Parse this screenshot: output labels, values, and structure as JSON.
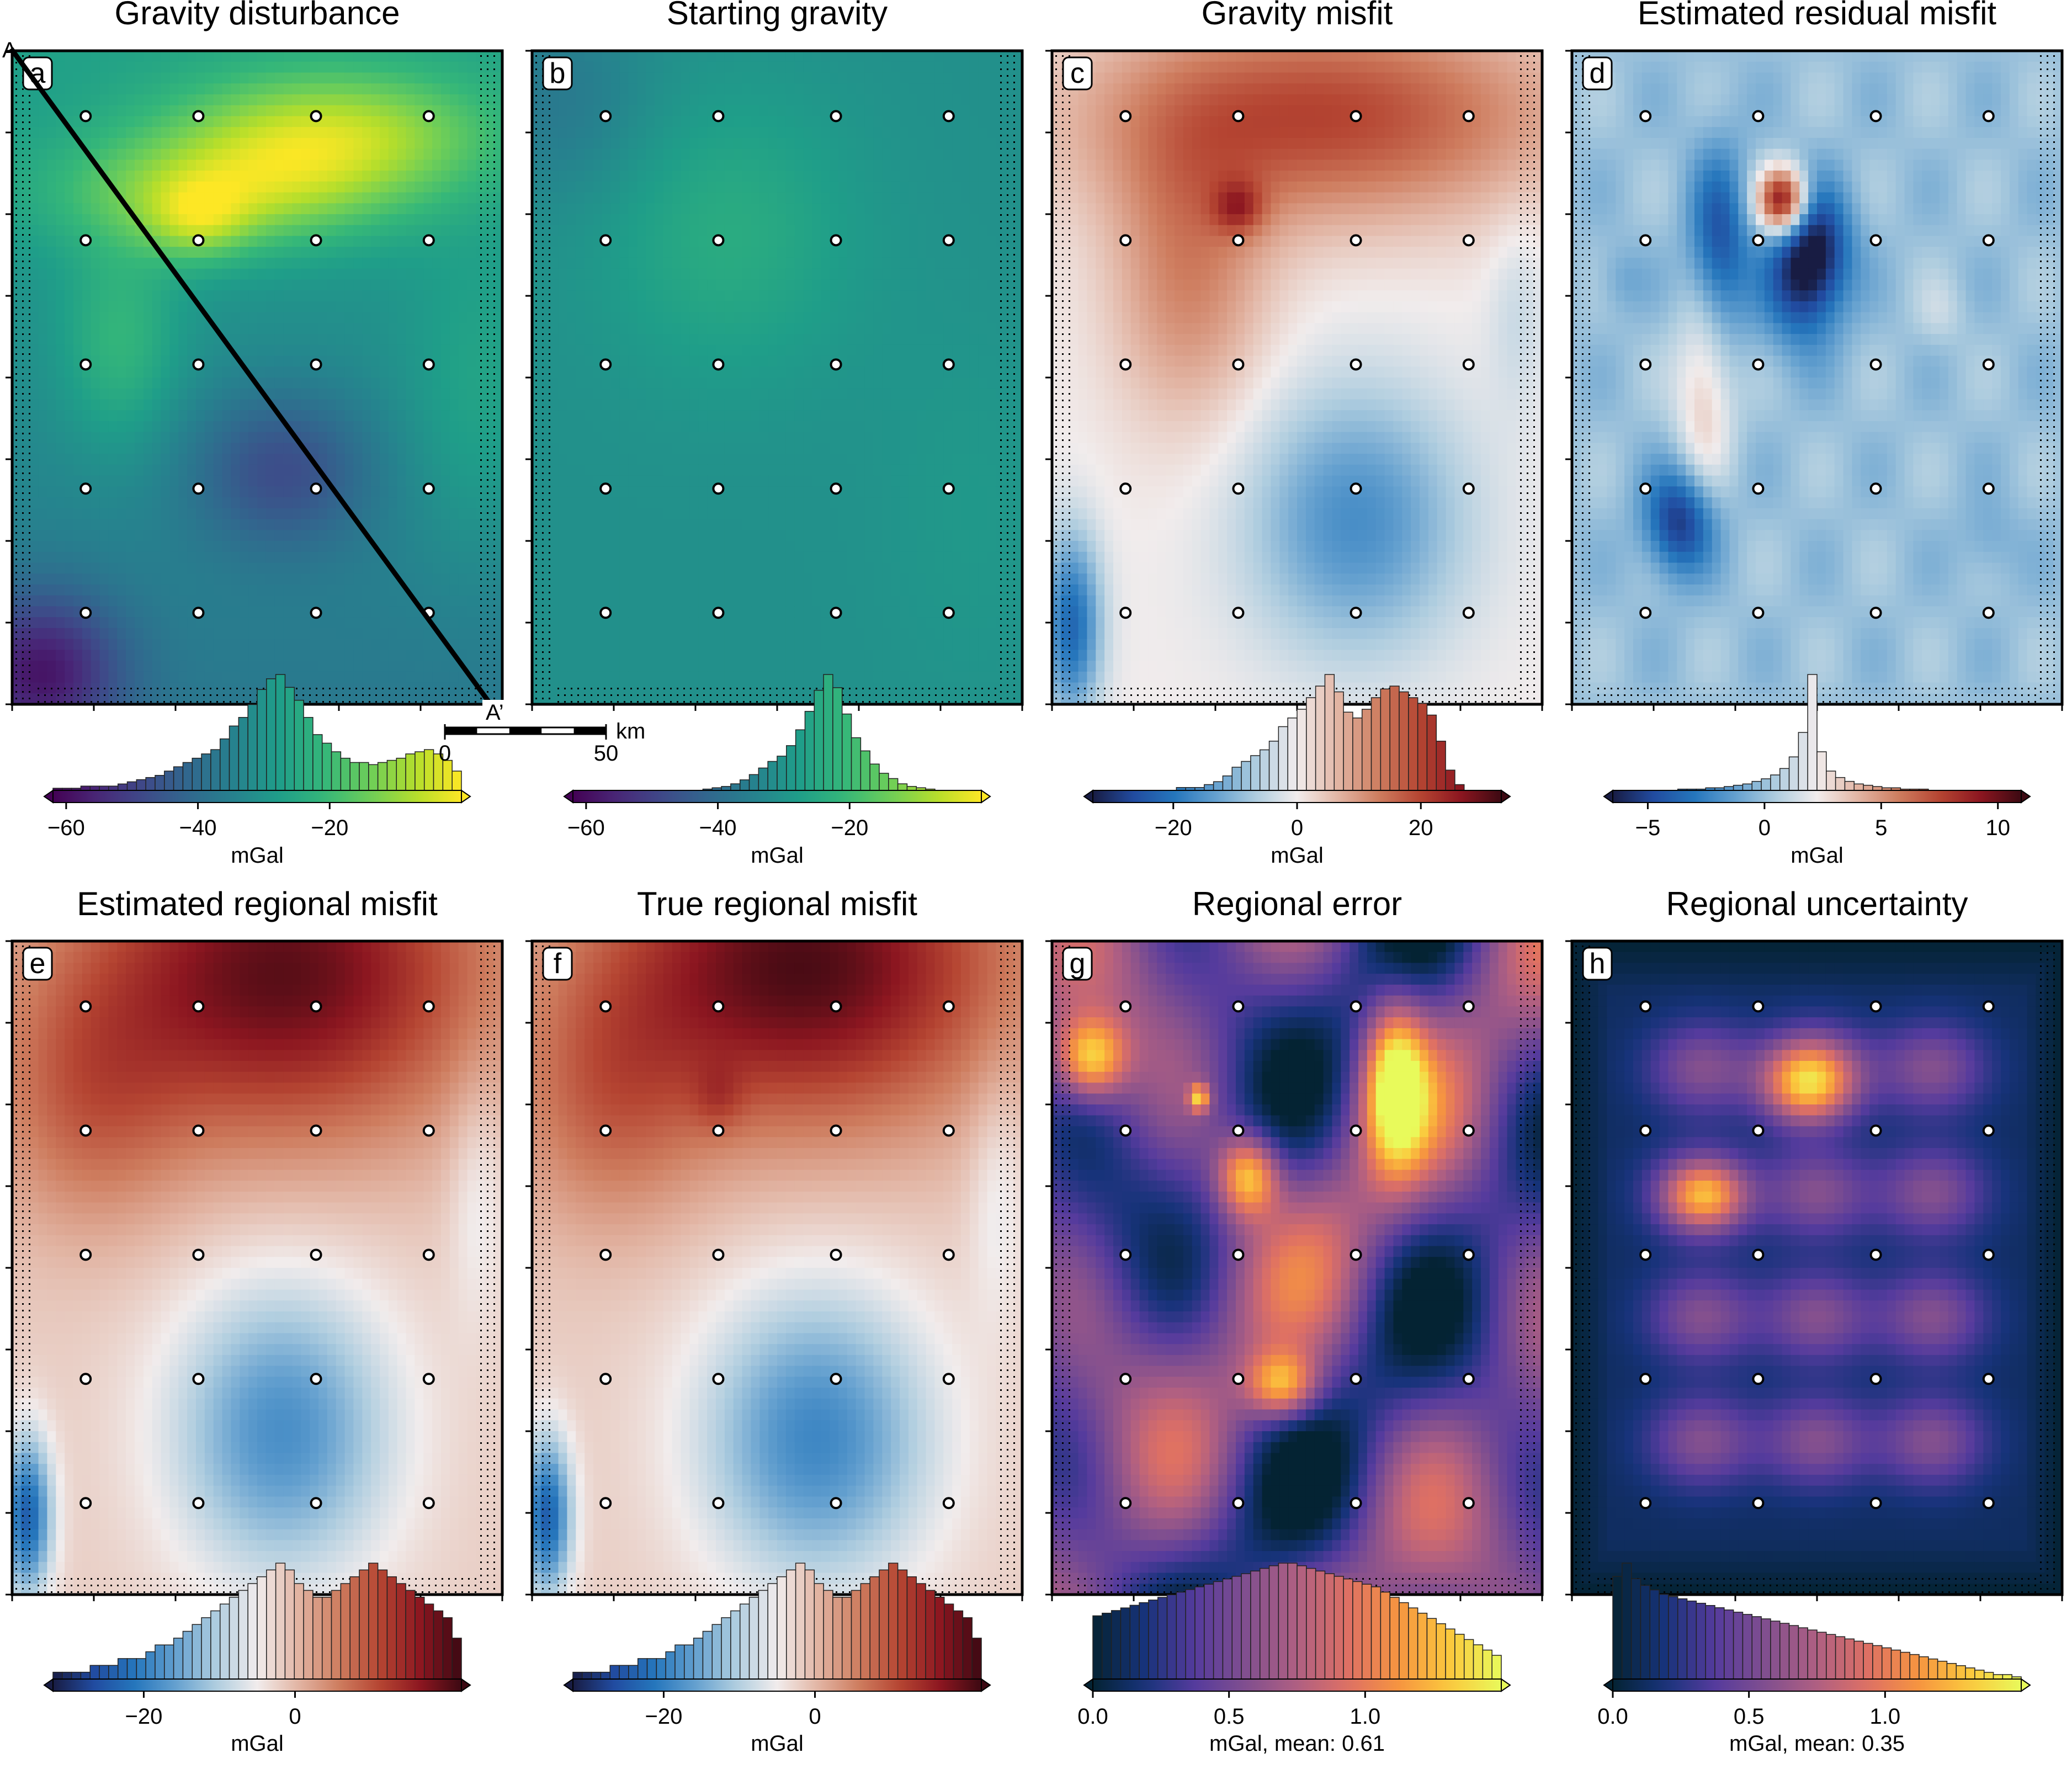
{
  "figure": {
    "scalebar": {
      "start_label": "0",
      "end_label": "50",
      "unit": "km"
    },
    "profile": {
      "start": "A",
      "end": "A’"
    }
  },
  "chart_data": [
    {
      "type": "heatmap",
      "letter": "a",
      "title": "Gravity disturbance",
      "colormap": "viridis",
      "field": "gravity",
      "cbar_range": [
        -62,
        0
      ],
      "cbar_ticks": [
        -60,
        -40,
        -20
      ],
      "cbar_label": "mGal",
      "hist": [
        1,
        1,
        1,
        2,
        2,
        2,
        2,
        3,
        4,
        5,
        6,
        7,
        9,
        11,
        13,
        15,
        17,
        19,
        24,
        30,
        34,
        40,
        47,
        52,
        54,
        48,
        42,
        34,
        26,
        22,
        18,
        15,
        13,
        13,
        12,
        13,
        14,
        15,
        17,
        18,
        19,
        17,
        14,
        9
      ],
      "show_profile": true,
      "show_scalebar": true
    },
    {
      "type": "heatmap",
      "letter": "b",
      "title": "Starting gravity",
      "colormap": "viridis",
      "field": "starting",
      "cbar_range": [
        -62,
        0
      ],
      "cbar_ticks": [
        -60,
        -40,
        -20
      ],
      "cbar_label": "mGal",
      "hist": [
        0,
        0,
        0,
        0,
        0,
        0,
        0,
        0,
        0,
        0,
        0,
        0,
        0,
        0,
        1,
        2,
        3,
        5,
        8,
        12,
        17,
        22,
        26,
        34,
        46,
        60,
        76,
        88,
        78,
        58,
        40,
        30,
        20,
        13,
        9,
        5,
        3,
        2,
        1,
        0,
        0,
        0,
        0,
        0
      ]
    },
    {
      "type": "heatmap",
      "letter": "c",
      "title": "Gravity misfit",
      "colormap": "balance",
      "field": "misfit",
      "cbar_range": [
        -33,
        33
      ],
      "cbar_ticks": [
        -20,
        0,
        20
      ],
      "cbar_label": "mGal",
      "hist": [
        0,
        0,
        0,
        0,
        0,
        0,
        0,
        0,
        0,
        1,
        1,
        1,
        2,
        3,
        5,
        8,
        10,
        12,
        14,
        17,
        22,
        25,
        28,
        32,
        36,
        40,
        34,
        27,
        25,
        28,
        32,
        35,
        36,
        34,
        32,
        30,
        26,
        17,
        7,
        2,
        0,
        0,
        0,
        0
      ]
    },
    {
      "type": "heatmap",
      "letter": "d",
      "title": "Estimated residual misfit",
      "colormap": "balance",
      "field": "residual",
      "cbar_range": [
        -6.5,
        11
      ],
      "cbar_ticks": [
        -5,
        0,
        5,
        10
      ],
      "cbar_label": "mGal",
      "hist": [
        0,
        0,
        0,
        0,
        0,
        0,
        0,
        1,
        1,
        1,
        2,
        2,
        3,
        4,
        5,
        7,
        9,
        12,
        17,
        26,
        45,
        90,
        30,
        15,
        10,
        7,
        5,
        4,
        3,
        2,
        2,
        1,
        1,
        1,
        0,
        0,
        0,
        0,
        0,
        0,
        0,
        0,
        0,
        0
      ]
    },
    {
      "type": "heatmap",
      "letter": "e",
      "title": "Estimated regional misfit",
      "colormap": "balance",
      "field": "regional",
      "cbar_range": [
        -32,
        22
      ],
      "cbar_ticks": [
        -20,
        0
      ],
      "cbar_label": "mGal",
      "hist": [
        1,
        1,
        1,
        1,
        2,
        2,
        2,
        3,
        3,
        3,
        4,
        5,
        5,
        6,
        7,
        8,
        9,
        10,
        11,
        12,
        13,
        14,
        15,
        16,
        17,
        16,
        14,
        13,
        12,
        12,
        13,
        14,
        15,
        16,
        17,
        16,
        15,
        14,
        13,
        12,
        11,
        10,
        9,
        6
      ]
    },
    {
      "type": "heatmap",
      "letter": "f",
      "title": "True regional misfit",
      "colormap": "balance",
      "field": "true_regional",
      "cbar_range": [
        -32,
        22
      ],
      "cbar_ticks": [
        -20,
        0
      ],
      "cbar_label": "mGal",
      "hist": [
        1,
        1,
        1,
        1,
        2,
        2,
        2,
        3,
        3,
        3,
        4,
        5,
        5,
        6,
        7,
        8,
        9,
        10,
        11,
        12,
        13,
        14,
        15,
        16,
        17,
        16,
        14,
        13,
        12,
        12,
        13,
        14,
        15,
        16,
        17,
        16,
        15,
        14,
        13,
        12,
        11,
        10,
        9,
        6
      ]
    },
    {
      "type": "heatmap",
      "letter": "g",
      "title": "Regional error",
      "colormap": "thermal",
      "field": "error",
      "cbar_range": [
        0,
        1.5
      ],
      "cbar_ticks": [
        0.0,
        0.5,
        1.0
      ],
      "cbar_label": "mGal, mean: 0.61",
      "hist": [
        24,
        25,
        26,
        27,
        28,
        29,
        30,
        31,
        32,
        33,
        34,
        35,
        36,
        37,
        38,
        39,
        40,
        41,
        42,
        43,
        44,
        44,
        43,
        42,
        41,
        40,
        39,
        38,
        37,
        36,
        35,
        33,
        31,
        29,
        27,
        25,
        23,
        21,
        19,
        17,
        15,
        13,
        11,
        9
      ]
    },
    {
      "type": "heatmap",
      "letter": "h",
      "title": "Regional uncertainty",
      "colormap": "thermal",
      "field": "uncertainty",
      "cbar_range": [
        0,
        1.5
      ],
      "cbar_ticks": [
        0.0,
        0.5,
        1.0
      ],
      "cbar_label": "mGal, mean: 0.35",
      "hist": [
        46,
        52,
        45,
        42,
        40,
        38,
        37,
        36,
        35,
        34,
        33,
        32,
        31,
        30,
        29,
        28,
        27,
        26,
        25,
        24,
        23,
        22,
        21,
        20,
        19,
        18,
        17,
        16,
        15,
        14,
        13,
        12,
        11,
        10,
        9,
        8,
        7,
        6,
        5,
        4,
        3,
        2,
        2,
        1
      ]
    }
  ]
}
